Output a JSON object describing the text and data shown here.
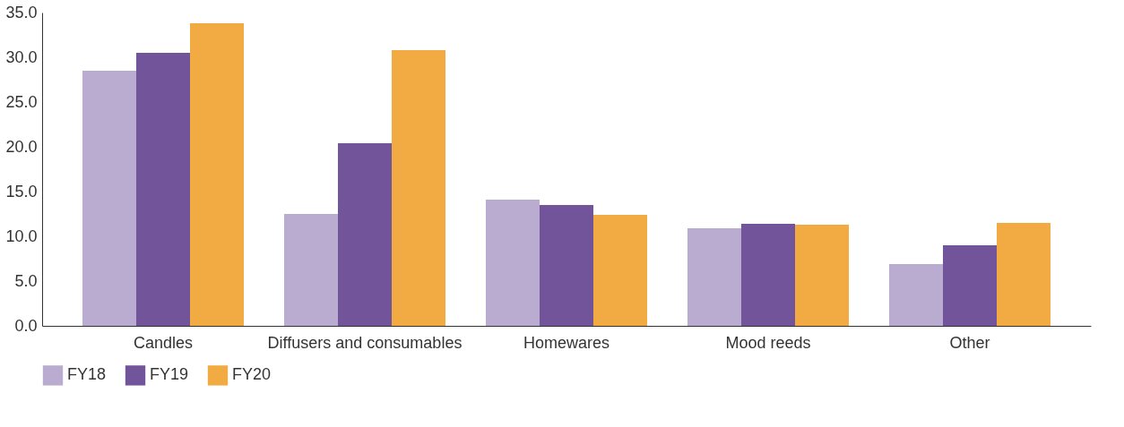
{
  "chart_data": {
    "type": "bar",
    "categories": [
      "Candles",
      "Diffusers and consumables",
      "Homewares",
      "Mood reeds",
      "Other"
    ],
    "series": [
      {
        "name": "FY18",
        "color": "#b9acd0",
        "values": [
          28.5,
          12.5,
          14.1,
          10.9,
          6.9
        ]
      },
      {
        "name": "FY19",
        "color": "#72549a",
        "values": [
          30.5,
          20.4,
          13.5,
          11.4,
          9.0
        ]
      },
      {
        "name": "FY20",
        "color": "#f2ab42",
        "values": [
          33.8,
          30.8,
          12.4,
          11.3,
          11.5
        ]
      }
    ],
    "ylim": [
      0,
      35
    ],
    "yticks": [
      {
        "value": 0,
        "label": "0.0"
      },
      {
        "value": 5,
        "label": "5.0"
      },
      {
        "value": 10,
        "label": "10.0"
      },
      {
        "value": 15,
        "label": "15.0"
      },
      {
        "value": 20,
        "label": "20.0"
      },
      {
        "value": 25,
        "label": "25.0"
      },
      {
        "value": 30,
        "label": "30.0"
      },
      {
        "value": 35,
        "label": "35.0"
      }
    ],
    "grid": false,
    "legend": "bottom left"
  }
}
